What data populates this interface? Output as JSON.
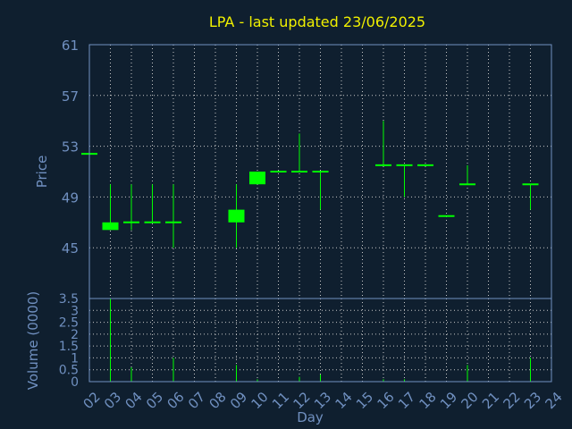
{
  "chart_data": {
    "type": "candlestick",
    "title": "LPA - last updated 23/06/2025",
    "xlabel": "Day",
    "price_panel": {
      "ylabel": "Price",
      "ylim": [
        41,
        61
      ],
      "yticks": [
        45,
        49,
        53,
        57,
        61
      ],
      "grid": true
    },
    "volume_panel": {
      "ylabel": "Volume (0000)",
      "ylim": [
        0,
        3.5
      ],
      "yticks": [
        "0",
        "0.5",
        "1",
        "1.5",
        "2",
        "2.5",
        "3",
        "3.5"
      ],
      "grid": true
    },
    "x_ticks": [
      "02",
      "03",
      "04",
      "05",
      "06",
      "07",
      "08",
      "09",
      "10",
      "11",
      "12",
      "13",
      "14",
      "15",
      "16",
      "17",
      "18",
      "19",
      "20",
      "21",
      "22",
      "23",
      "24"
    ],
    "candles": [
      {
        "day": "02",
        "open": 52.4,
        "high": 52.4,
        "low": 52.4,
        "close": 52.4,
        "volume": 0
      },
      {
        "day": "03",
        "open": 47.0,
        "high": 50.0,
        "low": 46.4,
        "close": 46.4,
        "volume": 3.5
      },
      {
        "day": "04",
        "open": 47.0,
        "high": 50.0,
        "low": 46.4,
        "close": 47.0,
        "volume": 0.6
      },
      {
        "day": "05",
        "open": 47.0,
        "high": 50.0,
        "low": 47.0,
        "close": 47.0,
        "volume": 0
      },
      {
        "day": "06",
        "open": 47.0,
        "high": 50.0,
        "low": 45.0,
        "close": 47.0,
        "volume": 1.0
      },
      {
        "day": "09",
        "open": 47.0,
        "high": 50.0,
        "low": 45.0,
        "close": 48.0,
        "volume": 0.7
      },
      {
        "day": "10",
        "open": 50.0,
        "high": 51.0,
        "low": 50.0,
        "close": 51.0,
        "volume": 0.1
      },
      {
        "day": "11",
        "open": 51.0,
        "high": 51.0,
        "low": 51.0,
        "close": 51.0,
        "volume": 0
      },
      {
        "day": "12",
        "open": 51.0,
        "high": 54.0,
        "low": 51.0,
        "close": 51.0,
        "volume": 0.2
      },
      {
        "day": "13",
        "open": 51.0,
        "high": 51.0,
        "low": 48.0,
        "close": 51.0,
        "volume": 0.3
      },
      {
        "day": "16",
        "open": 51.5,
        "high": 55.0,
        "low": 51.5,
        "close": 51.5,
        "volume": 0.1
      },
      {
        "day": "17",
        "open": 51.5,
        "high": 51.5,
        "low": 49.0,
        "close": 51.5,
        "volume": 0.1
      },
      {
        "day": "18",
        "open": 51.5,
        "high": 51.5,
        "low": 51.5,
        "close": 51.5,
        "volume": 0
      },
      {
        "day": "19",
        "open": 47.5,
        "high": 47.5,
        "low": 47.5,
        "close": 47.5,
        "volume": 0
      },
      {
        "day": "20",
        "open": 50.0,
        "high": 51.5,
        "low": 50.0,
        "close": 50.0,
        "volume": 0.7
      },
      {
        "day": "23",
        "open": 50.0,
        "high": 50.0,
        "low": 48.0,
        "close": 50.0,
        "volume": 1.0
      }
    ],
    "colors": {
      "background": "#0f1f2f",
      "candle": "#00ff00",
      "title": "#f0f000",
      "axis": "#7090c0",
      "grid": "#c8c8c8"
    }
  }
}
